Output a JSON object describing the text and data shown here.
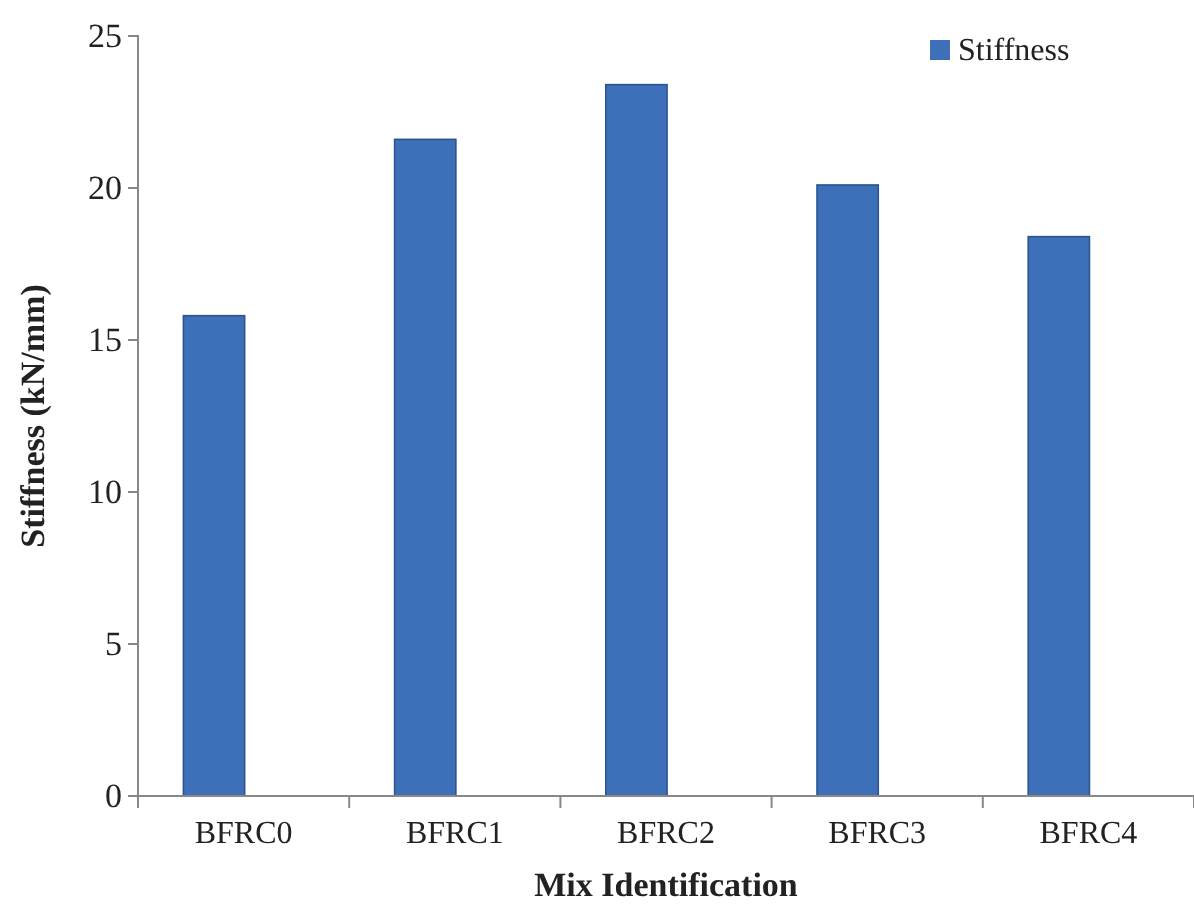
{
  "chart_data": {
    "type": "bar",
    "xlabel": "Mix Identification",
    "ylabel": "Stiffness (kN/mm)",
    "categories": [
      "BFRC0",
      "BFRC1",
      "BFRC2",
      "BFRC3",
      "BFRC4"
    ],
    "series": [
      {
        "name": "Stiffness",
        "color": "#3d70b8",
        "values": [
          15.8,
          21.6,
          23.4,
          20.1,
          18.4
        ]
      }
    ],
    "ylim": [
      0,
      25
    ],
    "yticks": [
      0,
      5,
      10,
      15,
      20,
      25
    ],
    "legend": "top right"
  }
}
